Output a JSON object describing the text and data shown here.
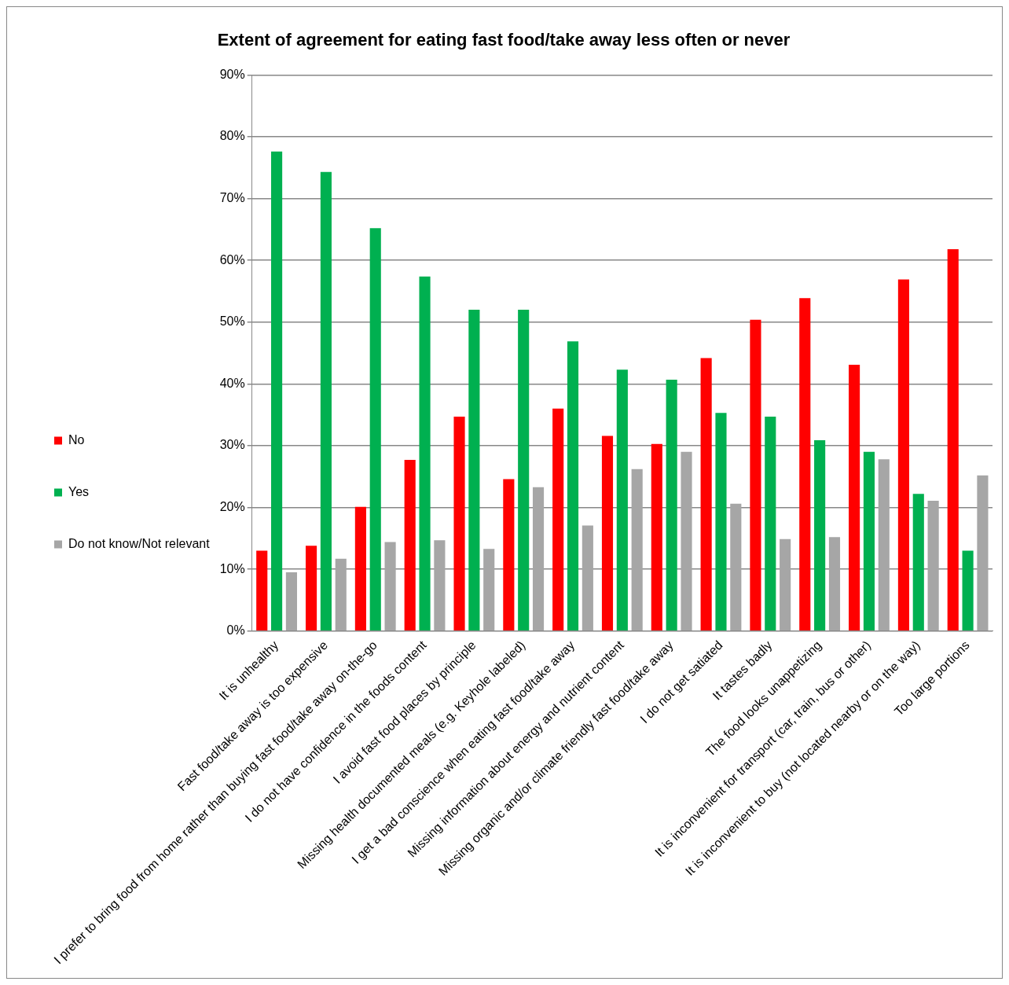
{
  "chart_data": {
    "type": "bar",
    "title": "Extent of agreement for eating fast food/take away less often or never",
    "categories": [
      "It is unhealthy",
      "Fast food/take away is too expensive",
      "I prefer to bring food from home rather than buying fast food/take away on-the-go",
      "I do not have confidence in the foods content",
      "I avoid fast food places by principle",
      "Missing health documented meals (e.g. Keyhole labeled)",
      "I get a bad conscience when eating fast food/take away",
      "Missing information about energy and nutrient content",
      "Missing organic and/or climate friendly fast food/take away",
      "I do not get satiated",
      "It tastes badly",
      "The food looks unappetizing",
      "It is inconvenient for transport (car, train, bus or other)",
      "It is inconvenient to buy (not located nearby or on the way)",
      "Too large portions"
    ],
    "series": [
      {
        "name": "No",
        "color": "#ff0000",
        "values": [
          13.0,
          13.8,
          20.1,
          27.7,
          34.7,
          24.6,
          36.0,
          31.6,
          30.3,
          44.2,
          50.4,
          53.9,
          43.1,
          56.9,
          61.8
        ]
      },
      {
        "name": "Yes",
        "color": "#00b050",
        "values": [
          77.6,
          74.3,
          65.2,
          57.4,
          52.0,
          52.0,
          46.9,
          42.3,
          40.7,
          35.3,
          34.7,
          30.9,
          29.0,
          22.2,
          13.0
        ]
      },
      {
        "name": "Do not know/Not relevant",
        "color": "#a6a6a6",
        "values": [
          9.5,
          11.7,
          14.4,
          14.7,
          13.3,
          23.3,
          17.1,
          26.2,
          29.0,
          20.6,
          14.9,
          15.2,
          27.8,
          21.1,
          25.2
        ]
      }
    ],
    "ylim": [
      0,
      90
    ],
    "yticks": [
      {
        "value": 0,
        "label": "0%"
      },
      {
        "value": 10,
        "label": "10%"
      },
      {
        "value": 20,
        "label": "20%"
      },
      {
        "value": 30,
        "label": "30%"
      },
      {
        "value": 40,
        "label": "40%"
      },
      {
        "value": 50,
        "label": "50%"
      },
      {
        "value": 60,
        "label": "60%"
      },
      {
        "value": 70,
        "label": "70%"
      },
      {
        "value": 80,
        "label": "80%"
      },
      {
        "value": 90,
        "label": "90%"
      }
    ],
    "grid": "y",
    "legend": "left"
  }
}
